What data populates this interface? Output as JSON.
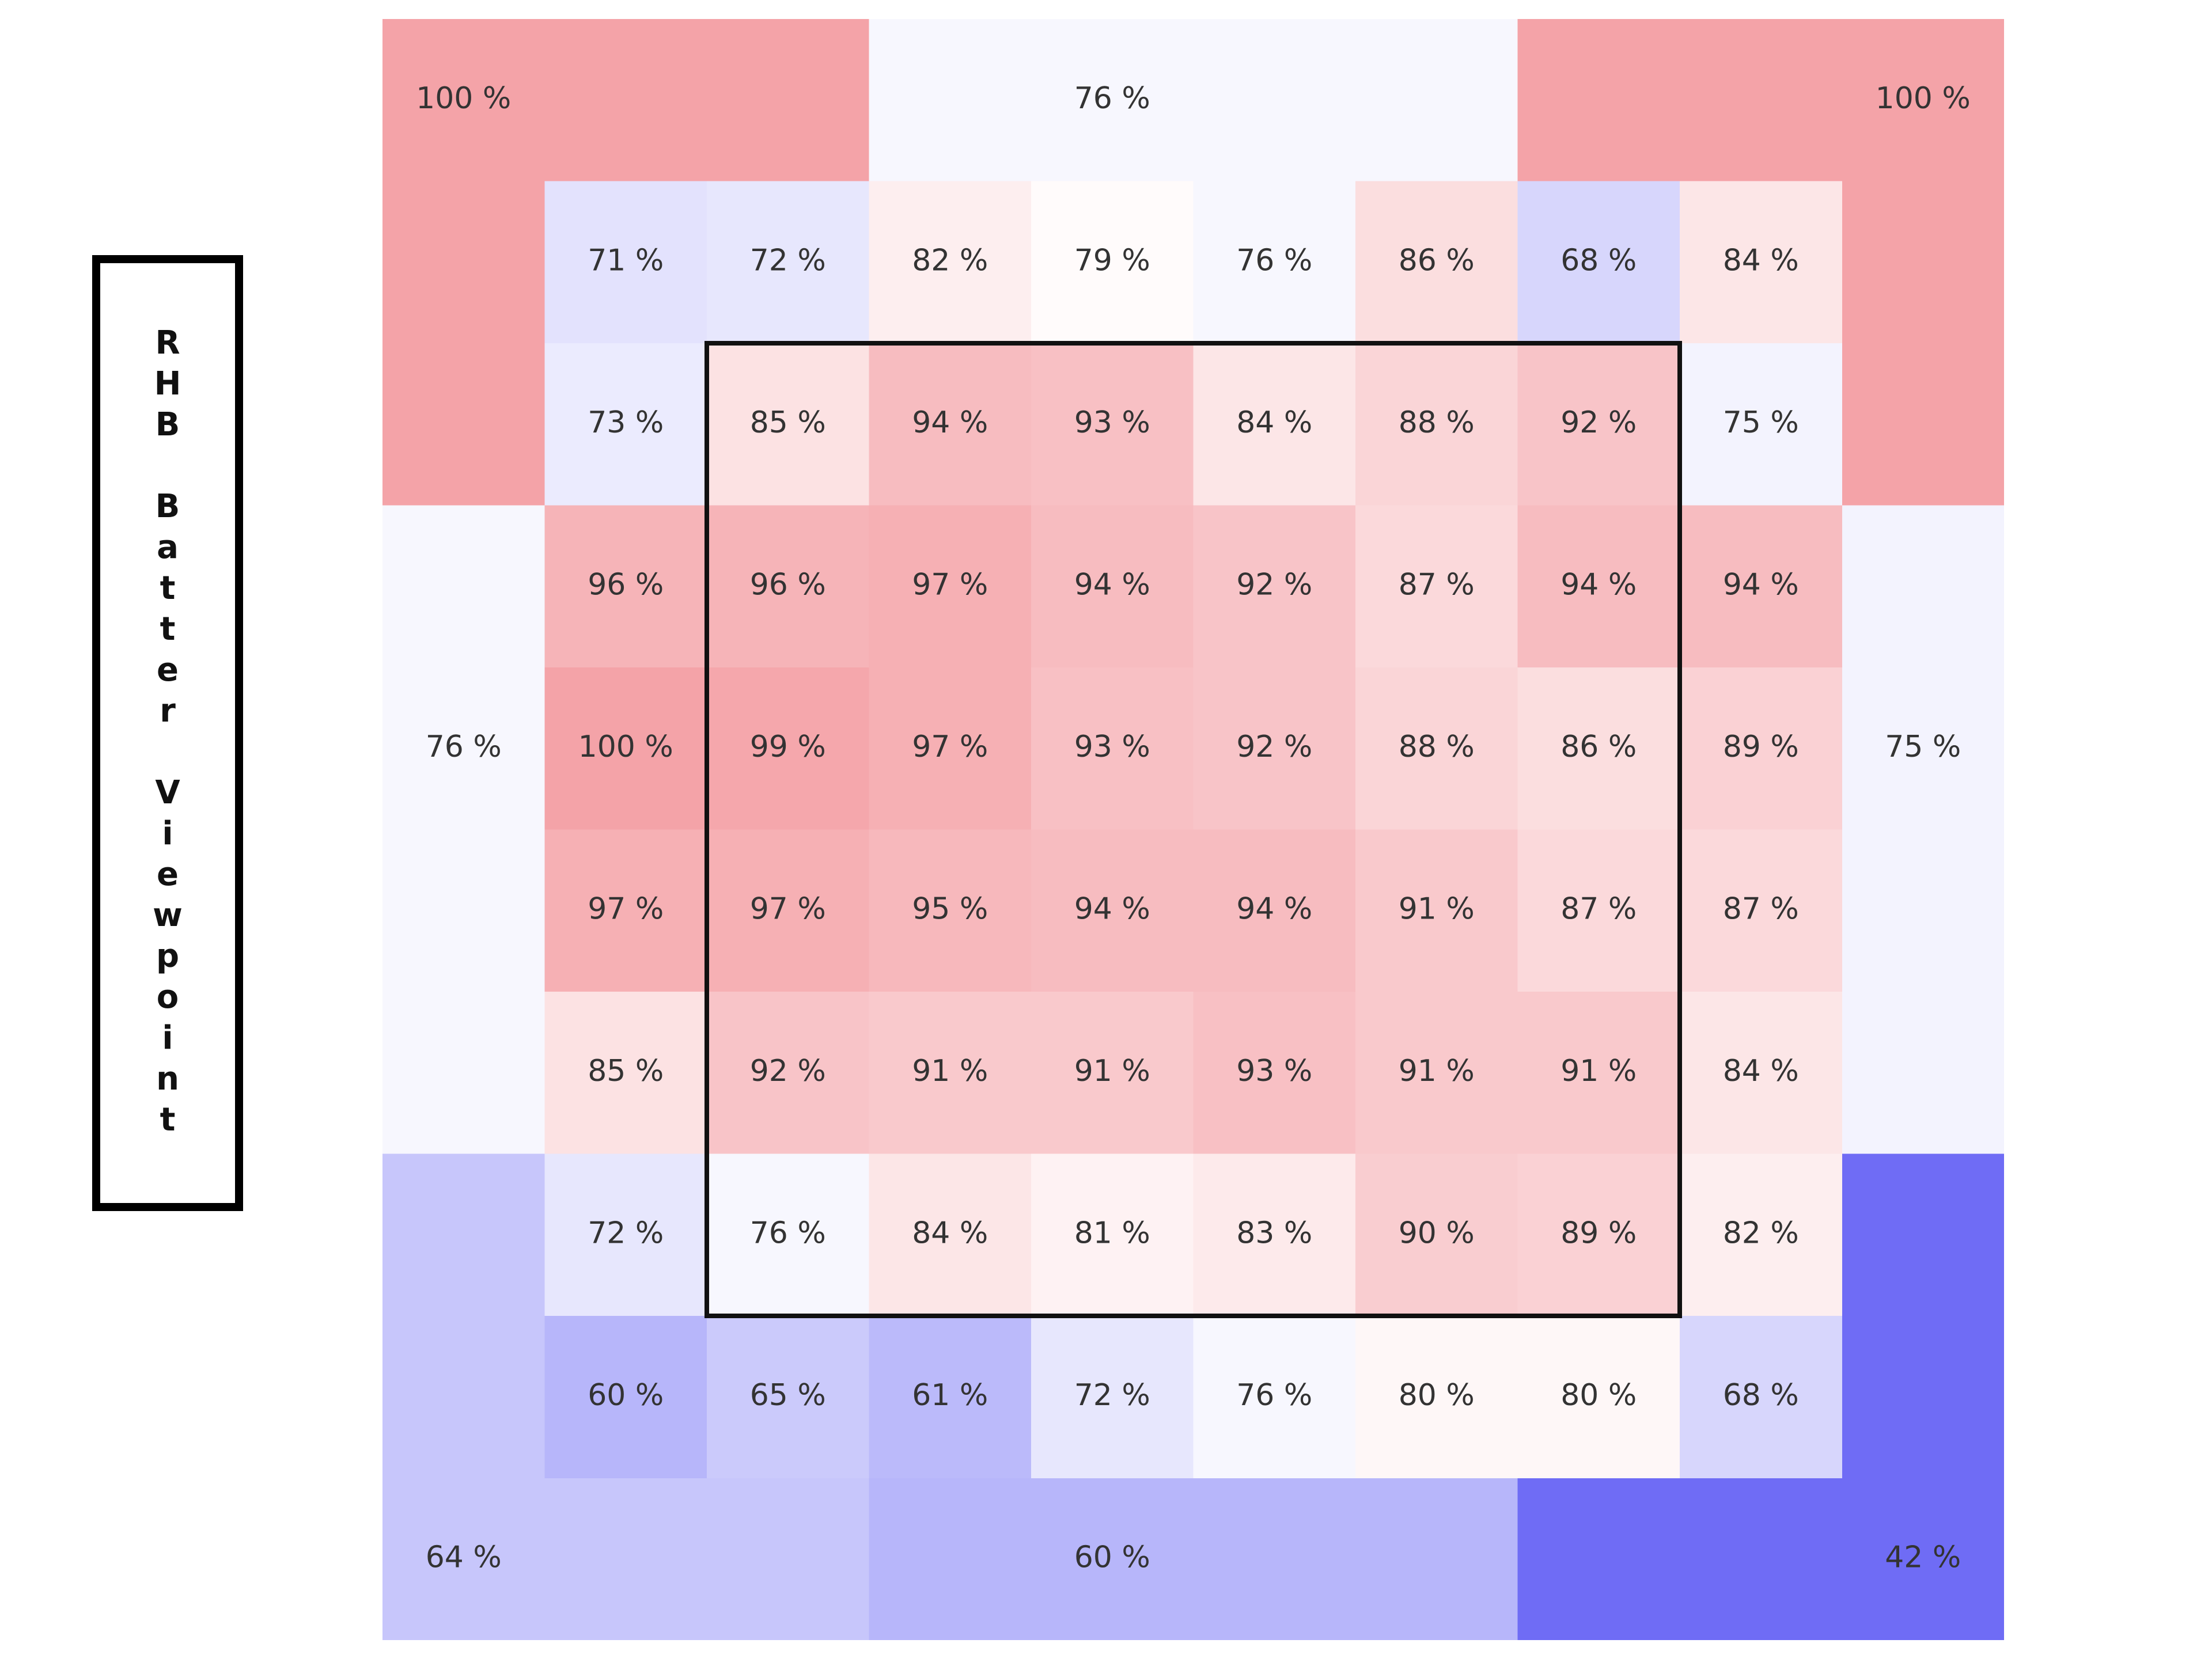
{
  "side_label": "RHB Batter Viewpoint",
  "colors": {
    "high": "#f4a3a8",
    "mid": "#ffffff",
    "low": "#6f6cf5",
    "zone_border": "#111111",
    "text": "#333333"
  },
  "chart_data": {
    "type": "heatmap",
    "title": "",
    "value_suffix": " %",
    "color_scale": {
      "min": 42,
      "mid": 78,
      "max": 100
    },
    "outer_zones": [
      {
        "id": "top-left",
        "value": 100
      },
      {
        "id": "top",
        "value": 76
      },
      {
        "id": "top-right",
        "value": 100
      },
      {
        "id": "left",
        "value": 76
      },
      {
        "id": "right",
        "value": 75
      },
      {
        "id": "bottom-left",
        "value": 64
      },
      {
        "id": "bottom",
        "value": 60
      },
      {
        "id": "bottom-right",
        "value": 42
      }
    ],
    "inner_grid": [
      [
        71,
        72,
        82,
        79,
        76,
        86,
        68,
        84
      ],
      [
        73,
        85,
        94,
        93,
        84,
        88,
        92,
        75
      ],
      [
        96,
        96,
        97,
        94,
        92,
        87,
        94,
        94
      ],
      [
        100,
        99,
        97,
        93,
        92,
        88,
        86,
        89
      ],
      [
        97,
        97,
        95,
        94,
        94,
        91,
        87,
        87
      ],
      [
        85,
        92,
        91,
        91,
        93,
        91,
        91,
        84
      ],
      [
        72,
        76,
        84,
        81,
        83,
        90,
        89,
        82
      ],
      [
        60,
        65,
        61,
        72,
        76,
        80,
        80,
        68
      ]
    ],
    "strike_zone": {
      "rows": [
        1,
        6
      ],
      "cols": [
        1,
        6
      ]
    }
  }
}
